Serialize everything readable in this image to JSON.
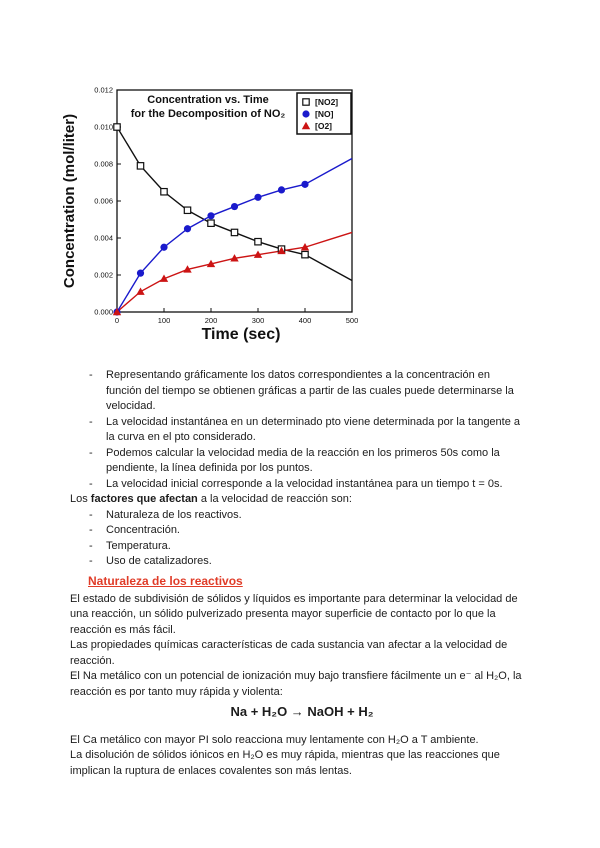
{
  "page": {
    "background": "#ffffff",
    "text_color": "#1c1c1c",
    "heading_color": "#e03c28"
  },
  "chart_data": {
    "type": "line",
    "title": "Concentration vs. Time",
    "subtitle": "for the Decomposition of NO₂",
    "xlabel": "Time (sec)",
    "ylabel": "Concentration (mol/liter)",
    "xlim": [
      0,
      500
    ],
    "ylim": [
      0,
      0.012
    ],
    "x_ticks": [
      0,
      100,
      200,
      300,
      400,
      500
    ],
    "y_ticks": [
      0,
      0.002,
      0.004,
      0.006,
      0.008,
      0.01,
      0.012
    ],
    "grid": false,
    "legend_position": "top-right-inside",
    "axis_color": "#111111",
    "x": [
      0,
      50,
      100,
      150,
      200,
      250,
      300,
      350,
      400
    ],
    "series": [
      {
        "name": "[NO2]",
        "marker": "open-square",
        "color": "#111111",
        "values": [
          0.01,
          0.0079,
          0.0065,
          0.0055,
          0.0048,
          0.0043,
          0.0038,
          0.0034,
          0.0031
        ],
        "line_tail": {
          "x": [
            450,
            500
          ],
          "values": [
            0.0024,
            0.0017
          ]
        }
      },
      {
        "name": "[NO]",
        "marker": "filled-circle",
        "color": "#1a1acc",
        "values": [
          0.0,
          0.0021,
          0.0035,
          0.0045,
          0.0052,
          0.0057,
          0.0062,
          0.0066,
          0.0069
        ],
        "line_tail": {
          "x": [
            450,
            500
          ],
          "values": [
            0.0076,
            0.0083
          ]
        }
      },
      {
        "name": "[O2]",
        "marker": "filled-triangle",
        "color": "#cc1414",
        "values": [
          0.0,
          0.0011,
          0.0018,
          0.0023,
          0.0026,
          0.0029,
          0.0031,
          0.0033,
          0.0035
        ],
        "line_tail": {
          "x": [
            450,
            500
          ],
          "values": [
            0.0039,
            0.0043
          ]
        }
      }
    ]
  },
  "content": {
    "bullets_top": [
      "Representando gráficamente los datos correspondientes a la concentración en\nfunción del tiempo se obtienen gráficas a partir de las cuales puede determinarse la\nvelocidad.",
      "La velocidad instantánea en un determinado pto viene determinada por la tangente a\nla curva en el pto considerado.",
      "Podemos calcular la velocidad media de la reacción en los primeros 50s como la\npendiente, la línea definida por los puntos.",
      "La velocidad inicial corresponde a la velocidad instantánea para un tiempo t = 0s."
    ],
    "factors_intro": {
      "prefix": "Los ",
      "bold": "factores que afectan",
      "suffix": " a la velocidad de reacción son:"
    },
    "factors": [
      "Naturaleza de los reactivos.",
      "Concentración.",
      "Temperatura.",
      "Uso de catalizadores."
    ],
    "section_heading": "Naturaleza de los reactivos",
    "paragraphs_before_equation": [
      "El estado de subdivisión de sólidos y líquidos es importante para determinar la velocidad de\nuna reacción, un sólido pulverizado presenta mayor superficie de contacto por lo que la\nreacción es más fácil.",
      "Las propiedades químicas características de cada sustancia van afectar a la velocidad de\nreacción.",
      "El Na metálico con un potencial de ionización muy bajo transfiere fácilmente un e⁻ al H₂O, la\nreacción es por tanto muy rápida y violenta:"
    ],
    "equation": "Na + H₂O → NaOH + H₂",
    "paragraphs_after_equation": [
      "El Ca metálico con mayor PI solo reacciona muy lentamente con H₂O a T ambiente.",
      "La disolución de sólidos iónicos en H₂O es muy rápida, mientras que las reacciones que\nimplican la ruptura de enlaces covalentes son más lentas."
    ]
  }
}
